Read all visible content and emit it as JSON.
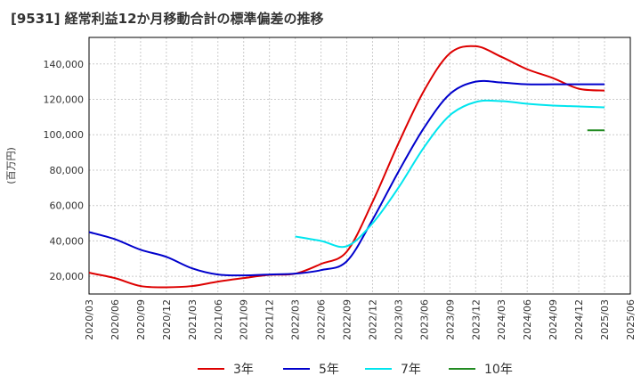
{
  "chart_data": {
    "type": "line",
    "title": "[9531]  経常利益12か月移動合計の標準偏差の推移",
    "ylabel": "(百万円)",
    "xlabel": "",
    "ylim": [
      10000,
      155000
    ],
    "yticks": [
      20000,
      40000,
      60000,
      80000,
      100000,
      120000,
      140000
    ],
    "ytick_labels": [
      "20,000",
      "40,000",
      "60,000",
      "80,000",
      "100,000",
      "120,000",
      "140,000"
    ],
    "xticks": [
      "2020/03",
      "2020/06",
      "2020/09",
      "2020/12",
      "2021/03",
      "2021/06",
      "2021/09",
      "2021/12",
      "2022/03",
      "2022/06",
      "2022/09",
      "2022/12",
      "2023/03",
      "2023/06",
      "2023/09",
      "2023/12",
      "2024/03",
      "2024/06",
      "2024/09",
      "2024/12",
      "2025/03",
      "2025/06"
    ],
    "grid": true,
    "legend_position": "bottom",
    "series": [
      {
        "name": "3年",
        "color": "#dd0000",
        "x": [
          "2020/03",
          "2020/06",
          "2020/09",
          "2020/12",
          "2021/03",
          "2021/06",
          "2021/09",
          "2021/12",
          "2022/03",
          "2022/06",
          "2022/09",
          "2022/12",
          "2023/03",
          "2023/06",
          "2023/09",
          "2023/12",
          "2024/03",
          "2024/06",
          "2024/09",
          "2024/12",
          "2025/03"
        ],
        "values": [
          22000,
          19000,
          14500,
          13800,
          14500,
          17000,
          19000,
          20800,
          21500,
          27000,
          34000,
          62000,
          95000,
          125000,
          146000,
          150000,
          144000,
          137000,
          132000,
          126000,
          125000
        ]
      },
      {
        "name": "5年",
        "color": "#0000cc",
        "x": [
          "2020/03",
          "2020/06",
          "2020/09",
          "2020/12",
          "2021/03",
          "2021/06",
          "2021/09",
          "2021/12",
          "2022/03",
          "2022/06",
          "2022/09",
          "2022/12",
          "2023/03",
          "2023/06",
          "2023/09",
          "2023/12",
          "2024/03",
          "2024/06",
          "2024/09",
          "2024/12",
          "2025/03"
        ],
        "values": [
          45000,
          41000,
          35000,
          31000,
          24500,
          21000,
          20500,
          21000,
          21500,
          23500,
          28500,
          52000,
          79000,
          104000,
          123000,
          130000,
          129500,
          128500,
          128500,
          128500,
          128500
        ]
      },
      {
        "name": "7年",
        "color": "#00e5ee",
        "x": [
          "2022/03",
          "2022/06",
          "2022/09",
          "2022/12",
          "2023/03",
          "2023/06",
          "2023/09",
          "2023/12",
          "2024/03",
          "2024/06",
          "2024/09",
          "2024/12",
          "2025/03"
        ],
        "values": [
          42500,
          40000,
          37000,
          50000,
          70000,
          93000,
          111000,
          118500,
          119000,
          117500,
          116500,
          116000,
          115500
        ]
      },
      {
        "name": "10年",
        "color": "#228b22",
        "x": [
          "2025/01",
          "2025/03"
        ],
        "values": [
          102500,
          102500
        ]
      }
    ]
  }
}
